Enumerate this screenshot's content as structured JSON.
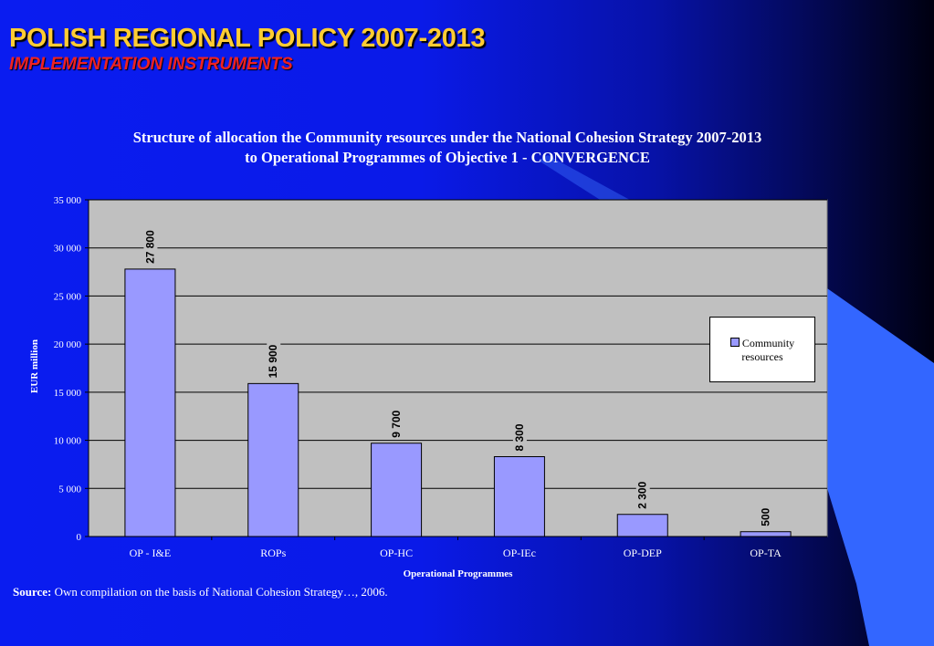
{
  "slide": {
    "title": "POLISH REGIONAL POLICY 2007-2013",
    "subtitle": "IMPLEMENTATION INSTRUMENTS",
    "source_label": "Source:",
    "source_text": " Own compilation on the basis of National Cohesion Strategy…, 2006."
  },
  "colors": {
    "title": "#ffcc33",
    "subtitle": "#ee2222",
    "background": "#0a1cf0",
    "plot_area": "#c0c0c0",
    "bar_fill": "#9999ff",
    "decor_shape": "#3366ff"
  },
  "chart_data": {
    "type": "bar",
    "title_line1": "Structure of allocation the Community resources under the National Cohesion Strategy  2007-2013",
    "title_line2": "to Operational Programmes of Objective 1 - CONVERGENCE",
    "xlabel": "Operational Programmes",
    "ylabel": "EUR million",
    "ylim": [
      0,
      35000
    ],
    "yticks": [
      0,
      5000,
      10000,
      15000,
      20000,
      25000,
      30000,
      35000
    ],
    "ytick_labels": [
      "0",
      "5 000",
      "10 000",
      "15 000",
      "20 000",
      "25 000",
      "30 000",
      "35 000"
    ],
    "categories": [
      "OP - I&E",
      "ROPs",
      "OP-HC",
      "OP-IEc",
      "OP-DEP",
      "OP-TA"
    ],
    "series": [
      {
        "name": "Community resources",
        "values": [
          27800,
          15900,
          9700,
          8300,
          2300,
          500
        ],
        "data_labels": [
          "27 800",
          "15 900",
          "9 700",
          "8 300",
          "2 300",
          "500"
        ]
      }
    ],
    "grid": true,
    "legend_position": "right"
  }
}
